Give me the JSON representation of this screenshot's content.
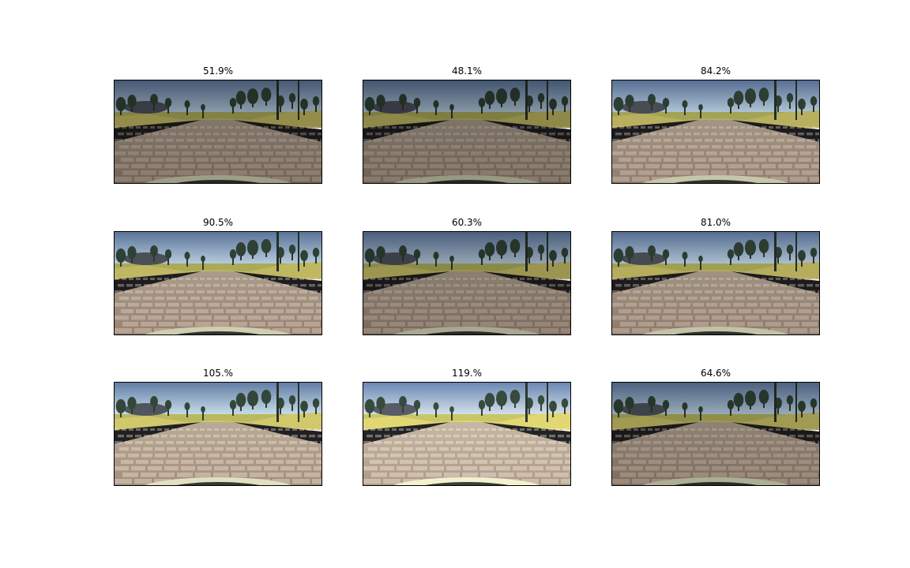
{
  "panels": [
    {
      "title": "51.9%",
      "brightness": 0.519
    },
    {
      "title": "48.1%",
      "brightness": 0.481
    },
    {
      "title": "84.2%",
      "brightness": 0.842
    },
    {
      "title": "90.5%",
      "brightness": 0.905
    },
    {
      "title": "60.3%",
      "brightness": 0.603
    },
    {
      "title": "81.0%",
      "brightness": 0.81
    },
    {
      "title": "105.%",
      "brightness": 1.05
    },
    {
      "title": "119.%",
      "brightness": 1.19
    },
    {
      "title": "64.6%",
      "brightness": 0.646
    }
  ]
}
